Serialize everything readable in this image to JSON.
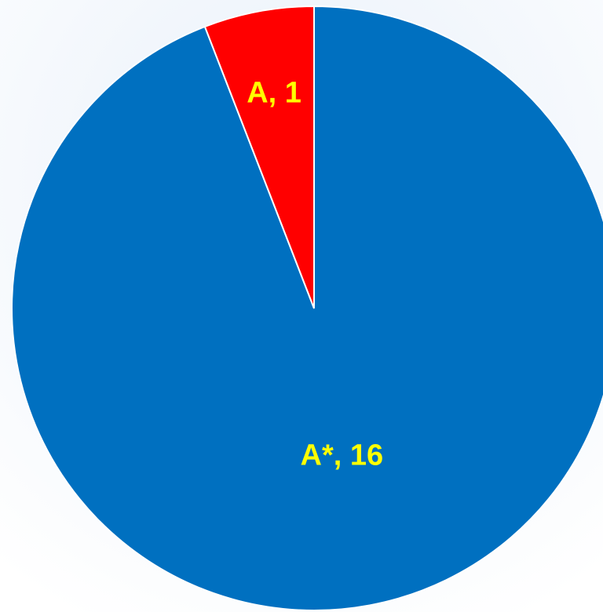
{
  "chart_data": {
    "type": "pie",
    "categories": [
      "A*",
      "A"
    ],
    "values": [
      16,
      1
    ],
    "value_labels": [
      "A*, 16",
      "A, 1"
    ],
    "colors": [
      "#0070c0",
      "#ff0000"
    ],
    "label_color": "#ffff00"
  }
}
